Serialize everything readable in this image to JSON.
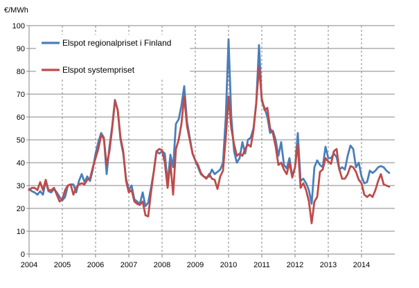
{
  "chart_data": {
    "type": "line",
    "ylabel": "€/MWh",
    "ylim": [
      0,
      100
    ],
    "yticks": [
      0,
      10,
      20,
      30,
      40,
      50,
      60,
      70,
      80,
      90,
      100
    ],
    "xlim": [
      2004,
      2015
    ],
    "xticks": [
      "2004",
      "2005",
      "2006",
      "2007",
      "2008",
      "2009",
      "2010",
      "2011",
      "2012",
      "2013",
      "2014"
    ],
    "grid": {
      "horizontal": "solid",
      "vertical": "dashed"
    },
    "legend_position": "top-left",
    "series": [
      {
        "name": "Elspot regionalpriset i Finland",
        "color": "#4a7ebb",
        "points": [
          [
            2004.0,
            28.5
          ],
          [
            2004.083,
            27.5
          ],
          [
            2004.167,
            27.0
          ],
          [
            2004.25,
            26.0
          ],
          [
            2004.333,
            27.5
          ],
          [
            2004.417,
            26.0
          ],
          [
            2004.5,
            32.0
          ],
          [
            2004.583,
            27.5
          ],
          [
            2004.667,
            27.0
          ],
          [
            2004.75,
            28.5
          ],
          [
            2004.833,
            27.0
          ],
          [
            2004.917,
            25.0
          ],
          [
            2005.0,
            23.5
          ],
          [
            2005.083,
            25.0
          ],
          [
            2005.167,
            30.0
          ],
          [
            2005.25,
            30.5
          ],
          [
            2005.333,
            30.5
          ],
          [
            2005.417,
            27.0
          ],
          [
            2005.5,
            32.0
          ],
          [
            2005.583,
            35.0
          ],
          [
            2005.667,
            31.5
          ],
          [
            2005.75,
            34.0
          ],
          [
            2005.833,
            32.0
          ],
          [
            2005.917,
            37.0
          ],
          [
            2006.0,
            44.0
          ],
          [
            2006.083,
            49.0
          ],
          [
            2006.167,
            53.0
          ],
          [
            2006.25,
            51.0
          ],
          [
            2006.333,
            35.0
          ],
          [
            2006.417,
            47.0
          ],
          [
            2006.5,
            56.0
          ],
          [
            2006.583,
            67.5
          ],
          [
            2006.667,
            63.0
          ],
          [
            2006.75,
            50.0
          ],
          [
            2006.833,
            44.0
          ],
          [
            2006.917,
            33.0
          ],
          [
            2007.0,
            28.0
          ],
          [
            2007.083,
            30.0
          ],
          [
            2007.167,
            24.0
          ],
          [
            2007.25,
            23.0
          ],
          [
            2007.333,
            22.0
          ],
          [
            2007.417,
            27.0
          ],
          [
            2007.5,
            21.0
          ],
          [
            2007.583,
            22.5
          ],
          [
            2007.667,
            29.0
          ],
          [
            2007.75,
            36.0
          ],
          [
            2007.833,
            45.0
          ],
          [
            2007.917,
            44.0
          ],
          [
            2008.0,
            45.0
          ],
          [
            2008.083,
            44.0
          ],
          [
            2008.167,
            31.0
          ],
          [
            2008.25,
            43.5
          ],
          [
            2008.333,
            38.0
          ],
          [
            2008.417,
            57.0
          ],
          [
            2008.5,
            59.0
          ],
          [
            2008.583,
            65.0
          ],
          [
            2008.667,
            73.5
          ],
          [
            2008.75,
            58.0
          ],
          [
            2008.833,
            51.0
          ],
          [
            2008.917,
            44.0
          ],
          [
            2009.0,
            41.0
          ],
          [
            2009.083,
            38.0
          ],
          [
            2009.167,
            35.0
          ],
          [
            2009.25,
            34.0
          ],
          [
            2009.333,
            33.5
          ],
          [
            2009.417,
            34.0
          ],
          [
            2009.5,
            37.0
          ],
          [
            2009.583,
            35.0
          ],
          [
            2009.667,
            36.0
          ],
          [
            2009.75,
            37.0
          ],
          [
            2009.833,
            40.0
          ],
          [
            2009.917,
            60.0
          ],
          [
            2010.0,
            94.0
          ],
          [
            2010.083,
            60.0
          ],
          [
            2010.167,
            45.0
          ],
          [
            2010.25,
            40.0
          ],
          [
            2010.333,
            42.0
          ],
          [
            2010.417,
            49.0
          ],
          [
            2010.5,
            44.0
          ],
          [
            2010.583,
            50.0
          ],
          [
            2010.667,
            51.0
          ],
          [
            2010.75,
            55.0
          ],
          [
            2010.833,
            66.0
          ],
          [
            2010.917,
            91.5
          ],
          [
            2011.0,
            67.0
          ],
          [
            2011.083,
            64.0
          ],
          [
            2011.167,
            60.0
          ],
          [
            2011.25,
            53.0
          ],
          [
            2011.333,
            54.0
          ],
          [
            2011.417,
            50.0
          ],
          [
            2011.5,
            43.0
          ],
          [
            2011.583,
            49.0
          ],
          [
            2011.667,
            39.0
          ],
          [
            2011.75,
            37.5
          ],
          [
            2011.833,
            42.0
          ],
          [
            2011.917,
            34.0
          ],
          [
            2012.0,
            38.0
          ],
          [
            2012.083,
            53.0
          ],
          [
            2012.167,
            32.0
          ],
          [
            2012.25,
            33.0
          ],
          [
            2012.333,
            31.0
          ],
          [
            2012.417,
            28.0
          ],
          [
            2012.5,
            22.0
          ],
          [
            2012.583,
            38.0
          ],
          [
            2012.667,
            41.0
          ],
          [
            2012.75,
            39.0
          ],
          [
            2012.833,
            38.0
          ],
          [
            2012.917,
            47.0
          ],
          [
            2013.0,
            42.0
          ],
          [
            2013.083,
            42.0
          ],
          [
            2013.167,
            44.0
          ],
          [
            2013.25,
            42.5
          ],
          [
            2013.333,
            37.0
          ],
          [
            2013.417,
            38.0
          ],
          [
            2013.5,
            37.0
          ],
          [
            2013.583,
            43.0
          ],
          [
            2013.667,
            47.5
          ],
          [
            2013.75,
            46.0
          ],
          [
            2013.833,
            38.0
          ],
          [
            2013.917,
            40.0
          ],
          [
            2014.0,
            34.0
          ],
          [
            2014.083,
            31.0
          ],
          [
            2014.167,
            31.5
          ],
          [
            2014.25,
            36.5
          ],
          [
            2014.333,
            35.5
          ],
          [
            2014.417,
            36.5
          ],
          [
            2014.5,
            38.0
          ],
          [
            2014.583,
            38.5
          ],
          [
            2014.667,
            38.0
          ],
          [
            2014.75,
            36.5
          ],
          [
            2014.833,
            35.5
          ]
        ]
      },
      {
        "name": "Elspot systempriset",
        "color": "#be4b48",
        "points": [
          [
            2004.0,
            28.0
          ],
          [
            2004.083,
            29.0
          ],
          [
            2004.167,
            29.0
          ],
          [
            2004.25,
            28.0
          ],
          [
            2004.333,
            31.5
          ],
          [
            2004.417,
            28.0
          ],
          [
            2004.5,
            32.5
          ],
          [
            2004.583,
            28.0
          ],
          [
            2004.667,
            28.0
          ],
          [
            2004.75,
            29.0
          ],
          [
            2004.833,
            26.0
          ],
          [
            2004.917,
            23.0
          ],
          [
            2005.0,
            24.0
          ],
          [
            2005.083,
            28.0
          ],
          [
            2005.167,
            30.0
          ],
          [
            2005.25,
            30.5
          ],
          [
            2005.333,
            26.0
          ],
          [
            2005.417,
            29.0
          ],
          [
            2005.5,
            30.5
          ],
          [
            2005.583,
            31.0
          ],
          [
            2005.667,
            30.5
          ],
          [
            2005.75,
            32.5
          ],
          [
            2005.833,
            33.0
          ],
          [
            2005.917,
            38.0
          ],
          [
            2006.0,
            42.0
          ],
          [
            2006.083,
            46.0
          ],
          [
            2006.167,
            52.0
          ],
          [
            2006.25,
            50.5
          ],
          [
            2006.333,
            39.0
          ],
          [
            2006.417,
            45.0
          ],
          [
            2006.5,
            55.0
          ],
          [
            2006.583,
            67.0
          ],
          [
            2006.667,
            63.0
          ],
          [
            2006.75,
            51.0
          ],
          [
            2006.833,
            45.0
          ],
          [
            2006.917,
            32.0
          ],
          [
            2007.0,
            27.0
          ],
          [
            2007.083,
            28.0
          ],
          [
            2007.167,
            23.0
          ],
          [
            2007.25,
            22.0
          ],
          [
            2007.333,
            21.5
          ],
          [
            2007.417,
            23.0
          ],
          [
            2007.5,
            17.0
          ],
          [
            2007.583,
            16.5
          ],
          [
            2007.667,
            27.0
          ],
          [
            2007.75,
            36.0
          ],
          [
            2007.833,
            45.0
          ],
          [
            2007.917,
            46.0
          ],
          [
            2008.0,
            45.5
          ],
          [
            2008.083,
            40.0
          ],
          [
            2008.167,
            29.0
          ],
          [
            2008.25,
            40.0
          ],
          [
            2008.333,
            26.0
          ],
          [
            2008.417,
            46.0
          ],
          [
            2008.5,
            50.0
          ],
          [
            2008.583,
            57.0
          ],
          [
            2008.667,
            69.0
          ],
          [
            2008.75,
            56.0
          ],
          [
            2008.833,
            50.0
          ],
          [
            2008.917,
            44.0
          ],
          [
            2009.0,
            41.0
          ],
          [
            2009.083,
            39.0
          ],
          [
            2009.167,
            35.5
          ],
          [
            2009.25,
            34.0
          ],
          [
            2009.333,
            33.0
          ],
          [
            2009.417,
            35.0
          ],
          [
            2009.5,
            33.0
          ],
          [
            2009.583,
            32.5
          ],
          [
            2009.667,
            28.5
          ],
          [
            2009.75,
            34.0
          ],
          [
            2009.833,
            36.5
          ],
          [
            2009.917,
            51.0
          ],
          [
            2010.0,
            69.0
          ],
          [
            2010.083,
            55.0
          ],
          [
            2010.167,
            48.0
          ],
          [
            2010.25,
            43.0
          ],
          [
            2010.333,
            44.0
          ],
          [
            2010.417,
            43.0
          ],
          [
            2010.5,
            46.0
          ],
          [
            2010.583,
            48.0
          ],
          [
            2010.667,
            47.0
          ],
          [
            2010.75,
            54.0
          ],
          [
            2010.833,
            66.0
          ],
          [
            2010.917,
            82.0
          ],
          [
            2011.0,
            68.0
          ],
          [
            2011.083,
            63.0
          ],
          [
            2011.167,
            64.0
          ],
          [
            2011.25,
            55.0
          ],
          [
            2011.333,
            53.0
          ],
          [
            2011.417,
            47.0
          ],
          [
            2011.5,
            39.0
          ],
          [
            2011.583,
            40.0
          ],
          [
            2011.667,
            37.0
          ],
          [
            2011.75,
            35.0
          ],
          [
            2011.833,
            40.0
          ],
          [
            2011.917,
            33.5
          ],
          [
            2012.0,
            38.0
          ],
          [
            2012.083,
            48.0
          ],
          [
            2012.167,
            29.0
          ],
          [
            2012.25,
            31.0
          ],
          [
            2012.333,
            28.0
          ],
          [
            2012.417,
            23.0
          ],
          [
            2012.5,
            13.5
          ],
          [
            2012.583,
            23.0
          ],
          [
            2012.667,
            25.0
          ],
          [
            2012.75,
            36.0
          ],
          [
            2012.833,
            37.0
          ],
          [
            2012.917,
            42.0
          ],
          [
            2013.0,
            40.5
          ],
          [
            2013.083,
            39.5
          ],
          [
            2013.167,
            45.0
          ],
          [
            2013.25,
            46.0
          ],
          [
            2013.333,
            37.0
          ],
          [
            2013.417,
            33.0
          ],
          [
            2013.5,
            33.0
          ],
          [
            2013.583,
            35.0
          ],
          [
            2013.667,
            38.5
          ],
          [
            2013.75,
            38.0
          ],
          [
            2013.833,
            36.0
          ],
          [
            2013.917,
            32.5
          ],
          [
            2014.0,
            31.0
          ],
          [
            2014.083,
            26.0
          ],
          [
            2014.167,
            25.0
          ],
          [
            2014.25,
            26.0
          ],
          [
            2014.333,
            25.0
          ],
          [
            2014.417,
            28.0
          ],
          [
            2014.5,
            32.0
          ],
          [
            2014.583,
            35.0
          ],
          [
            2014.667,
            30.5
          ],
          [
            2014.75,
            30.0
          ],
          [
            2014.833,
            29.5
          ]
        ]
      }
    ]
  }
}
